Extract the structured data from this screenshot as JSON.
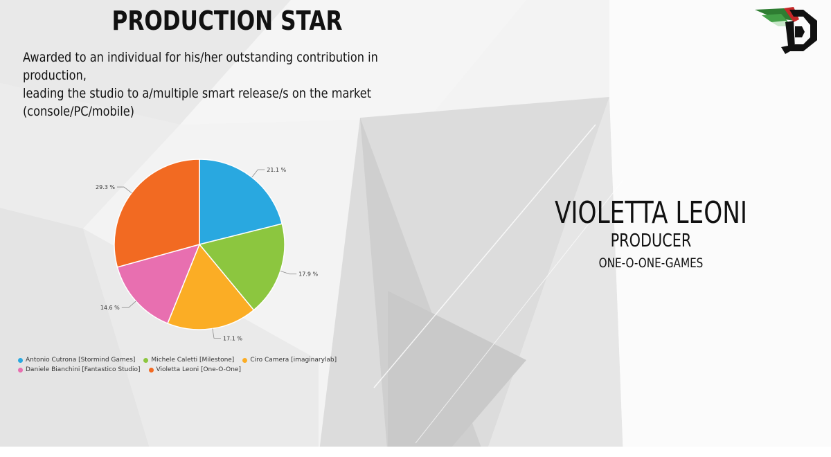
{
  "slide": {
    "title": "PRODUCTION STAR",
    "description_lines": [
      "Awarded to an individual for his/her outstanding contribution in production,",
      "leading the studio to a/multiple smart release/s on the market",
      "(console/PC/mobile)"
    ]
  },
  "winner": {
    "name": "VIOLETTA LEONI",
    "role": "PRODUCER",
    "organization": "ONE-O-ONE-GAMES"
  },
  "logo": {
    "icon": "studio-logo-icon",
    "colors": [
      "#2e7d32",
      "#c62828",
      "#111111"
    ]
  },
  "chart_data": {
    "type": "pie",
    "title": "",
    "legend_position": "bottom-left",
    "slices": [
      {
        "label": "Antonio Cutrona [Stormind Games]",
        "value": 21.1,
        "display": "21.1 %",
        "color": "#29a8e0"
      },
      {
        "label": "Michele Caletti [Milestone]",
        "value": 17.9,
        "display": "17.9 %",
        "color": "#8cc63f"
      },
      {
        "label": "Ciro Camera [imaginarylab]",
        "value": 17.1,
        "display": "17.1 %",
        "color": "#fbad25"
      },
      {
        "label": "Daniele Bianchini [Fantastico Studio]",
        "value": 14.6,
        "display": "14.6 %",
        "color": "#e86fb0"
      },
      {
        "label": "Violetta Leoni [One-O-One]",
        "value": 29.3,
        "display": "29.3 %",
        "color": "#f26a22"
      }
    ]
  }
}
